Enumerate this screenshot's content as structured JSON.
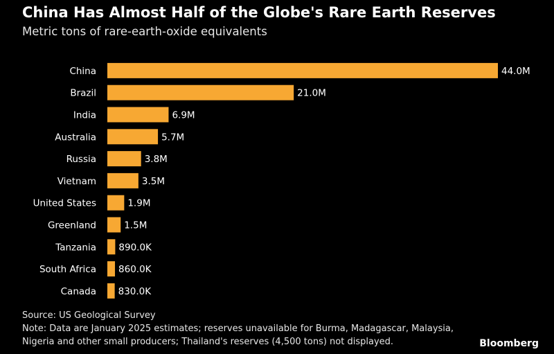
{
  "title": "China Has Almost Half of the Globe's Rare Earth Reserves",
  "subtitle": "Metric tons of rare-earth-oxide equivalents",
  "source": "Source: US Geological Survey",
  "note_line1": "Note: Data are January 2025 estimates; reserves unavailable for Burma, Madagascar, Malaysia,",
  "note_line2": "Nigeria and other small producers; Thailand's reserves (4,500 tons) not displayed.",
  "brand": "Bloomberg",
  "colors": {
    "bar": "#f7a833",
    "background": "#000000",
    "text": "#ffffff"
  },
  "chart_data": {
    "type": "bar",
    "orientation": "horizontal",
    "title": "China Has Almost Half of the Globe's Rare Earth Reserves",
    "ylabel": "",
    "xlabel": "",
    "unit": "Metric tons of rare-earth-oxide equivalents",
    "categories": [
      "China",
      "Brazil",
      "India",
      "Australia",
      "Russia",
      "Vietnam",
      "United States",
      "Greenland",
      "Tanzania",
      "South Africa",
      "Canada"
    ],
    "values": [
      44000000,
      21000000,
      6900000,
      5700000,
      3800000,
      3500000,
      1900000,
      1500000,
      890000,
      860000,
      830000
    ],
    "labels": [
      "44.0M",
      "21.0M",
      "6.9M",
      "5.7M",
      "3.8M",
      "3.5M",
      "1.9M",
      "1.5M",
      "890.0K",
      "860.0K",
      "830.0K"
    ],
    "xlim": [
      0,
      44000000
    ],
    "grid": false
  }
}
